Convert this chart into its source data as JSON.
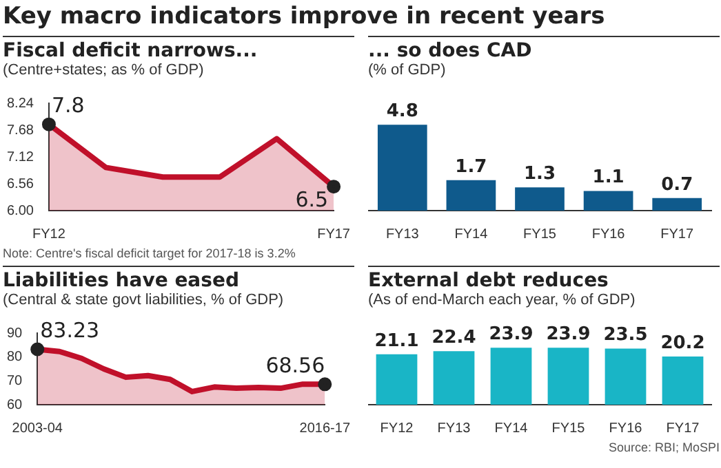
{
  "chart_data": [
    {
      "type": "other",
      "title": "Key macro indicators improve in recent years"
    },
    {
      "type": "area",
      "title": "Fiscal deficit narrows...",
      "subtitle": "(Centre+states; as % of GDP)",
      "categories": [
        "FY12",
        null,
        null,
        null,
        null,
        "FY17"
      ],
      "values": [
        7.8,
        6.9,
        6.7,
        6.7,
        7.5,
        6.5
      ],
      "value_labels": [
        "7.8",
        null,
        null,
        null,
        null,
        "6.5"
      ],
      "color": "#c0102a",
      "ylim": [
        6,
        8.24
      ],
      "yticks": [
        {
          "value": 6,
          "label": "6.00"
        },
        6.56,
        7.12,
        7.68,
        8.24
      ],
      "annotations": [
        "Note: Centre's fiscal deficit target for 2017-18 is 3.2%"
      ]
    },
    {
      "type": "bar",
      "title": "... so does CAD",
      "subtitle": "(% of GDP)",
      "categories": [
        "FY13",
        "FY14",
        "FY15",
        "FY16",
        "FY17"
      ],
      "values": [
        4.8,
        1.7,
        1.3,
        1.1,
        0.7
      ],
      "color": "#0f5a8c",
      "data_labels": true
    },
    {
      "type": "area",
      "title": "Liabilities have eased",
      "subtitle": "(Central & state govt liabilities, % of GDP)",
      "categories": [
        "2003-04",
        null,
        null,
        null,
        null,
        null,
        null,
        null,
        null,
        null,
        null,
        null,
        null,
        "2016-17"
      ],
      "values": [
        83.23,
        82.3,
        79.4,
        75.0,
        71.5,
        72.2,
        70.6,
        65.5,
        67.4,
        66.9,
        67.2,
        66.9,
        68.6,
        68.56
      ],
      "value_labels": [
        "83.23",
        null,
        null,
        null,
        null,
        null,
        null,
        null,
        null,
        null,
        null,
        null,
        null,
        "68.56"
      ],
      "color": "#c0102a",
      "ylim": [
        60,
        90
      ],
      "yticks": [
        60,
        70,
        80,
        90
      ]
    },
    {
      "type": "bar",
      "title": "External debt reduces",
      "subtitle": "(As of end-March each year, % of GDP)",
      "categories": [
        "FY12",
        "FY13",
        "FY14",
        "FY15",
        "FY16",
        "FY17"
      ],
      "values": [
        21.1,
        22.4,
        23.9,
        23.9,
        23.5,
        20.2
      ],
      "color": "#19b5c6",
      "data_labels": true,
      "annotations": [
        "Source: RBI; MoSPI"
      ]
    }
  ]
}
